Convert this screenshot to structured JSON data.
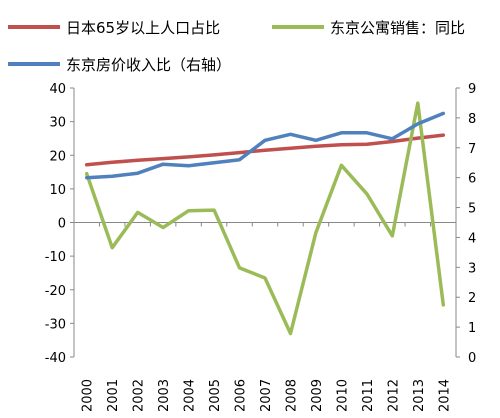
{
  "chart_data": {
    "type": "line",
    "x": [
      "2000",
      "2001",
      "2002",
      "2003",
      "2004",
      "2005",
      "2006",
      "2007",
      "2008",
      "2009",
      "2010",
      "2011",
      "2012",
      "2013",
      "2014"
    ],
    "series": [
      {
        "name": "日本65岁以上人口占比",
        "axis": "left",
        "color": "#c0504d",
        "values": [
          17.2,
          17.9,
          18.5,
          19.0,
          19.5,
          20.1,
          20.8,
          21.5,
          22.1,
          22.7,
          23.1,
          23.3,
          24.1,
          25.1,
          26.0
        ]
      },
      {
        "name": "东京公寓销售：同比",
        "axis": "left",
        "color": "#9bbb59",
        "values": [
          14.5,
          -7.5,
          3.0,
          -1.5,
          3.5,
          3.7,
          -13.5,
          -16.5,
          -33.0,
          -3.0,
          17.0,
          8.5,
          -4.0,
          35.5,
          -24.5
        ]
      },
      {
        "name": "东京房价收入比（右轴）",
        "axis": "right",
        "color": "#4f81bd",
        "values": [
          6.0,
          6.05,
          6.15,
          6.45,
          6.4,
          6.5,
          6.6,
          7.25,
          7.45,
          7.25,
          7.5,
          7.5,
          7.3,
          7.8,
          8.15
        ]
      }
    ],
    "ylim_left": [
      -40,
      40
    ],
    "yticks_left": [
      "40",
      "30",
      "20",
      "10",
      "0",
      "-10",
      "-20",
      "-30",
      "-40"
    ],
    "ylim_right": [
      0,
      9
    ],
    "yticks_right": [
      "9",
      "8",
      "7",
      "6",
      "5",
      "4",
      "3",
      "2",
      "1",
      "0"
    ],
    "legend": {
      "row1": [
        "日本65岁以上人口占比",
        "东京公寓销售：同比"
      ],
      "row2": [
        "东京房价收入比（右轴）"
      ]
    }
  }
}
